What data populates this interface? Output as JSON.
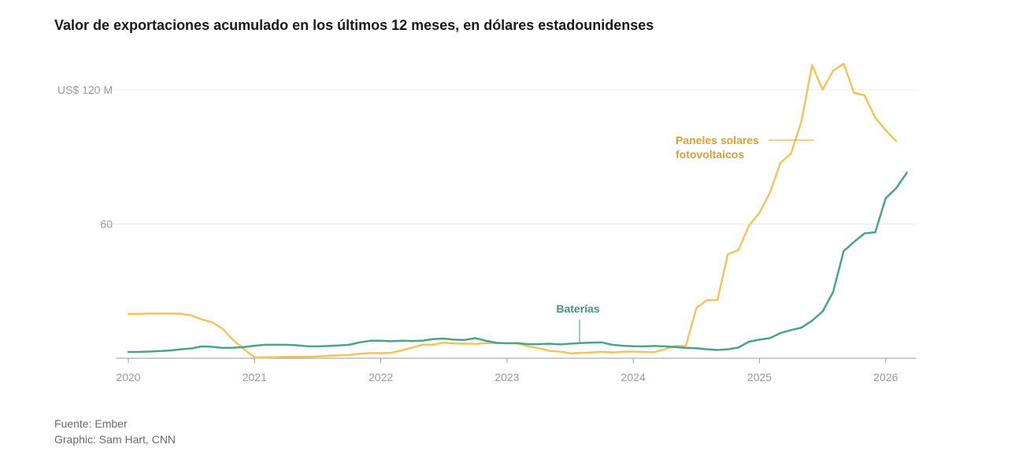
{
  "title": "Valor de exportaciones acumulado en los últimos 12 meses, en dólares estadounidenses",
  "source": "Fuente: Ember",
  "credit": "Graphic: Sam Hart, CNN",
  "colors": {
    "solar": "#f2c45a",
    "solar_label": "#d9a230",
    "batteries": "#4aa38c",
    "batteries_label": "#3d9a80",
    "grid": "#e8e8e8",
    "axis": "#9a9a9a"
  },
  "chart_data": {
    "type": "line",
    "title": "Valor de exportaciones acumulado en los últimos 12 meses, en dólares estadounidenses",
    "xlabel": "",
    "ylabel": "",
    "xlim": [
      2020,
      2026.25
    ],
    "ylim": [
      0,
      120
    ],
    "x_ticks": [
      {
        "value": 2020,
        "label": "2020"
      },
      {
        "value": 2021,
        "label": "2021"
      },
      {
        "value": 2022,
        "label": "2022"
      },
      {
        "value": 2023,
        "label": "2023"
      },
      {
        "value": 2024,
        "label": "2024"
      },
      {
        "value": 2025,
        "label": "2025"
      },
      {
        "value": 2026,
        "label": "2026"
      }
    ],
    "y_ticks": [
      {
        "value": 60,
        "label": "60"
      },
      {
        "value": 120,
        "label": "US$ 120 M"
      }
    ],
    "grid": true,
    "series": [
      {
        "name": "Paneles solares fotovoltaicos",
        "label_lines": [
          "Paneles solares",
          "fotovoltaicos"
        ],
        "color": "#f2c45a",
        "points": [
          [
            2020.0,
            19.8
          ],
          [
            2020.083,
            19.8
          ],
          [
            2020.167,
            20.0
          ],
          [
            2020.25,
            20.0
          ],
          [
            2020.333,
            20.0
          ],
          [
            2020.417,
            19.9
          ],
          [
            2020.5,
            19.1
          ],
          [
            2020.583,
            17.3
          ],
          [
            2020.667,
            16.0
          ],
          [
            2020.75,
            13.0
          ],
          [
            2020.833,
            8.0
          ],
          [
            2020.917,
            4.0
          ],
          [
            2021.0,
            0.4
          ],
          [
            2021.083,
            0.4
          ],
          [
            2021.167,
            0.5
          ],
          [
            2021.25,
            0.6
          ],
          [
            2021.333,
            0.6
          ],
          [
            2021.417,
            0.7
          ],
          [
            2021.5,
            0.8
          ],
          [
            2021.583,
            1.1
          ],
          [
            2021.667,
            1.3
          ],
          [
            2021.75,
            1.4
          ],
          [
            2021.833,
            2.0
          ],
          [
            2021.917,
            2.3
          ],
          [
            2022.0,
            2.3
          ],
          [
            2022.083,
            2.4
          ],
          [
            2022.167,
            3.5
          ],
          [
            2022.25,
            4.8
          ],
          [
            2022.333,
            6.1
          ],
          [
            2022.417,
            6.1
          ],
          [
            2022.5,
            7.0
          ],
          [
            2022.583,
            6.6
          ],
          [
            2022.667,
            6.5
          ],
          [
            2022.75,
            6.4
          ],
          [
            2022.833,
            6.8
          ],
          [
            2022.917,
            6.8
          ],
          [
            2023.0,
            6.8
          ],
          [
            2023.083,
            6.6
          ],
          [
            2023.167,
            5.3
          ],
          [
            2023.25,
            4.5
          ],
          [
            2023.333,
            3.3
          ],
          [
            2023.417,
            3.0
          ],
          [
            2023.5,
            2.2
          ],
          [
            2023.583,
            2.4
          ],
          [
            2023.667,
            2.6
          ],
          [
            2023.75,
            2.9
          ],
          [
            2023.833,
            2.6
          ],
          [
            2023.917,
            2.9
          ],
          [
            2024.0,
            3.0
          ],
          [
            2024.083,
            2.8
          ],
          [
            2024.167,
            2.7
          ],
          [
            2024.25,
            4.0
          ],
          [
            2024.333,
            5.5
          ],
          [
            2024.417,
            5.5
          ],
          [
            2024.5,
            22.4
          ],
          [
            2024.583,
            26.0
          ],
          [
            2024.667,
            26.0
          ],
          [
            2024.75,
            46.5
          ],
          [
            2024.833,
            48.3
          ],
          [
            2024.917,
            59.3
          ],
          [
            2025.0,
            65.0
          ],
          [
            2025.083,
            74.0
          ],
          [
            2025.167,
            87.4
          ],
          [
            2025.25,
            91.5
          ],
          [
            2025.333,
            106.0
          ],
          [
            2025.417,
            131.0
          ],
          [
            2025.5,
            120.0
          ],
          [
            2025.583,
            128.5
          ],
          [
            2025.667,
            131.6
          ],
          [
            2025.75,
            118.6
          ],
          [
            2025.833,
            117.5
          ],
          [
            2025.917,
            107.5
          ],
          [
            2026.0,
            101.9
          ],
          [
            2026.083,
            97.0
          ]
        ]
      },
      {
        "name": "Baterías",
        "label_lines": [
          "Baterías"
        ],
        "color": "#4aa38c",
        "points": [
          [
            2020.0,
            2.8
          ],
          [
            2020.083,
            2.8
          ],
          [
            2020.167,
            3.0
          ],
          [
            2020.25,
            3.2
          ],
          [
            2020.333,
            3.5
          ],
          [
            2020.417,
            4.0
          ],
          [
            2020.5,
            4.4
          ],
          [
            2020.583,
            5.3
          ],
          [
            2020.667,
            5.1
          ],
          [
            2020.75,
            4.6
          ],
          [
            2020.833,
            4.7
          ],
          [
            2020.917,
            5.0
          ],
          [
            2021.0,
            5.6
          ],
          [
            2021.083,
            6.0
          ],
          [
            2021.167,
            6.0
          ],
          [
            2021.25,
            6.0
          ],
          [
            2021.333,
            5.8
          ],
          [
            2021.417,
            5.4
          ],
          [
            2021.5,
            5.3
          ],
          [
            2021.583,
            5.5
          ],
          [
            2021.667,
            5.7
          ],
          [
            2021.75,
            6.0
          ],
          [
            2021.833,
            7.1
          ],
          [
            2021.917,
            7.8
          ],
          [
            2022.0,
            7.8
          ],
          [
            2022.083,
            7.6
          ],
          [
            2022.167,
            7.8
          ],
          [
            2022.25,
            7.7
          ],
          [
            2022.333,
            7.9
          ],
          [
            2022.417,
            8.6
          ],
          [
            2022.5,
            8.8
          ],
          [
            2022.583,
            8.3
          ],
          [
            2022.667,
            8.2
          ],
          [
            2022.75,
            9.0
          ],
          [
            2022.833,
            7.8
          ],
          [
            2022.917,
            6.9
          ],
          [
            2023.0,
            6.7
          ],
          [
            2023.083,
            6.8
          ],
          [
            2023.167,
            6.3
          ],
          [
            2023.25,
            6.3
          ],
          [
            2023.333,
            6.5
          ],
          [
            2023.417,
            6.2
          ],
          [
            2023.5,
            6.5
          ],
          [
            2023.583,
            6.8
          ],
          [
            2023.667,
            7.0
          ],
          [
            2023.75,
            7.1
          ],
          [
            2023.833,
            6.0
          ],
          [
            2023.917,
            5.6
          ],
          [
            2024.0,
            5.4
          ],
          [
            2024.083,
            5.3
          ],
          [
            2024.167,
            5.5
          ],
          [
            2024.25,
            5.3
          ],
          [
            2024.333,
            5.0
          ],
          [
            2024.417,
            4.6
          ],
          [
            2024.5,
            4.5
          ],
          [
            2024.583,
            4.0
          ],
          [
            2024.667,
            3.7
          ],
          [
            2024.75,
            4.0
          ],
          [
            2024.833,
            4.8
          ],
          [
            2024.917,
            7.4
          ],
          [
            2025.0,
            8.3
          ],
          [
            2025.083,
            9.0
          ],
          [
            2025.167,
            11.3
          ],
          [
            2025.25,
            12.6
          ],
          [
            2025.333,
            13.7
          ],
          [
            2025.417,
            16.8
          ],
          [
            2025.5,
            20.9
          ],
          [
            2025.583,
            29.6
          ],
          [
            2025.667,
            47.9
          ],
          [
            2025.75,
            52.0
          ],
          [
            2025.833,
            55.8
          ],
          [
            2025.917,
            56.3
          ],
          [
            2026.0,
            71.5
          ],
          [
            2026.083,
            76.0
          ],
          [
            2026.167,
            82.9
          ]
        ]
      }
    ]
  }
}
